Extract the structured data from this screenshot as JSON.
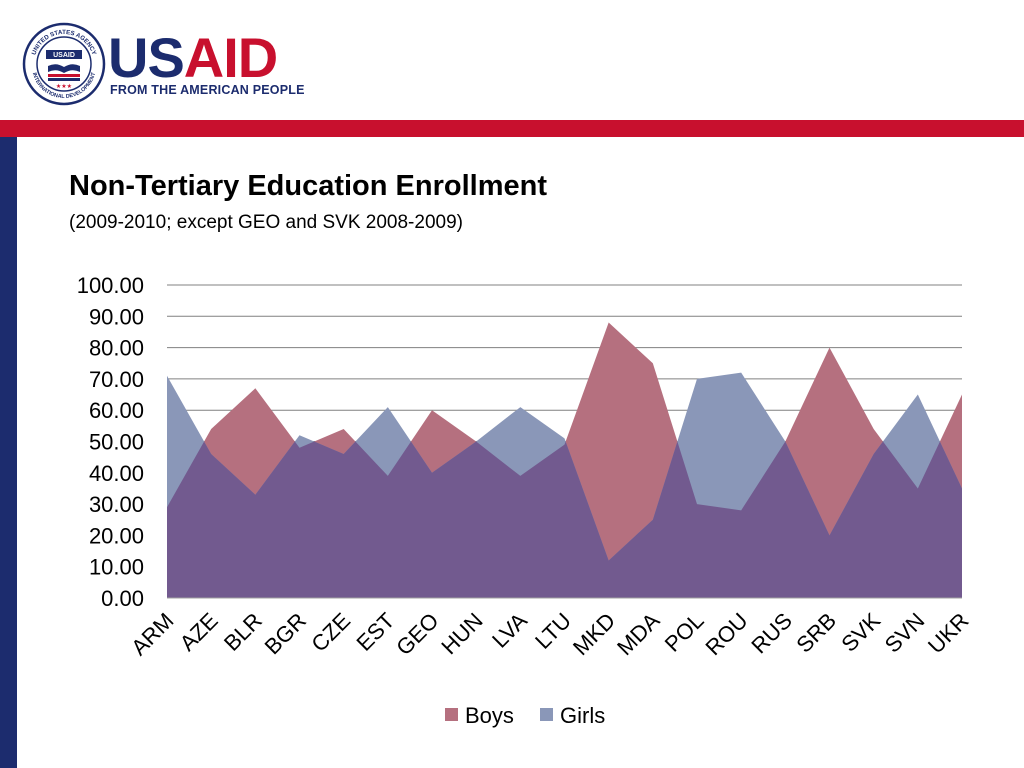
{
  "header": {
    "seal_text_top": "UNITED STATES AGENCY",
    "seal_text_bottom": "INTERNATIONAL DEVELOPMENT",
    "seal_label": "USAID",
    "wordmark_us": "US",
    "wordmark_aid": "AID",
    "tagline": "FROM THE AMERICAN PEOPLE"
  },
  "colors": {
    "navy": "#1c2c6e",
    "red": "#c8102e",
    "boys": "#b5707f",
    "girls": "#8a97b8",
    "overlap": "#725a8f",
    "grid": "#808080"
  },
  "chart_data": {
    "type": "area",
    "title": "Non-Tertiary Education Enrollment",
    "subtitle": "(2009-2010; except GEO and SVK 2008-2009)",
    "categories": [
      "ARM",
      "AZE",
      "BLR",
      "BGR",
      "CZE",
      "EST",
      "GEO",
      "HUN",
      "LVA",
      "LTU",
      "MKD",
      "MDA",
      "POL",
      "ROU",
      "RUS",
      "SRB",
      "SVK",
      "SVN",
      "UKR"
    ],
    "series": [
      {
        "name": "Boys",
        "values": [
          29,
          54,
          67,
          48,
          54,
          39,
          60,
          50,
          39,
          49,
          88,
          75,
          30,
          28,
          50,
          80,
          54,
          35,
          65
        ]
      },
      {
        "name": "Girls",
        "values": [
          71,
          46,
          33,
          52,
          46,
          61,
          40,
          50,
          61,
          51,
          12,
          25,
          70,
          72,
          50,
          20,
          46,
          65,
          35
        ]
      }
    ],
    "y_ticks": [
      "100.00",
      "90.00",
      "80.00",
      "70.00",
      "60.00",
      "50.00",
      "40.00",
      "30.00",
      "20.00",
      "10.00",
      "0.00"
    ],
    "ylim": [
      0,
      100
    ],
    "grid": true,
    "legend": "bottom"
  }
}
